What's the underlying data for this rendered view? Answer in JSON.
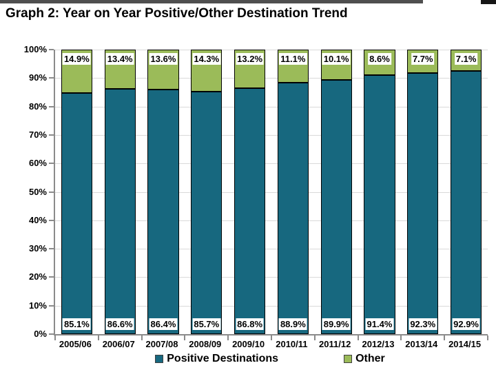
{
  "page_title": "Graph 2: Year on Year Positive/Other Destination Trend",
  "chart_data": {
    "type": "bar",
    "stacked": true,
    "title": "Graph 2: Year on Year Positive/Other Destination Trend",
    "categories": [
      "2005/06",
      "2006/07",
      "2007/08",
      "2008/09",
      "2009/10",
      "2010/11",
      "2011/12",
      "2012/13",
      "2013/14",
      "2014/15"
    ],
    "series": [
      {
        "name": "Positive Destinations",
        "color": "#17687F",
        "values": [
          85.1,
          86.6,
          86.4,
          85.7,
          86.8,
          88.9,
          89.9,
          91.4,
          92.3,
          92.9
        ],
        "labels": [
          "85.1%",
          "86.6%",
          "86.4%",
          "85.7%",
          "86.8%",
          "88.9%",
          "89.9%",
          "91.4%",
          "92.3%",
          "92.9%"
        ]
      },
      {
        "name": "Other",
        "color": "#9BBB59",
        "values": [
          14.9,
          13.4,
          13.6,
          14.3,
          13.2,
          11.1,
          10.1,
          8.6,
          7.7,
          7.1
        ],
        "labels": [
          "14.9%",
          "13.4%",
          "13.6%",
          "14.3%",
          "13.2%",
          "11.1%",
          "10.1%",
          "8.6%",
          "7.7%",
          "7.1%"
        ]
      }
    ],
    "xlabel": "",
    "ylabel": "",
    "ylim": [
      0,
      100
    ],
    "ytick_labels": [
      "0%",
      "10%",
      "20%",
      "30%",
      "40%",
      "50%",
      "60%",
      "70%",
      "80%",
      "90%",
      "100%"
    ],
    "grid": true,
    "legend_position": "bottom"
  },
  "legend": {
    "items": [
      {
        "label": "Positive Destinations",
        "color": "#17687F"
      },
      {
        "label": "Other",
        "color": "#9BBB59"
      }
    ]
  },
  "colors": {
    "positive": "#17687F",
    "other": "#9BBB59",
    "gridline": "#D9D9D9",
    "axis": "#8A8A8A",
    "bar_border": "#000000",
    "label_box": "#FFFFFF",
    "background": "#FFFFFF"
  }
}
